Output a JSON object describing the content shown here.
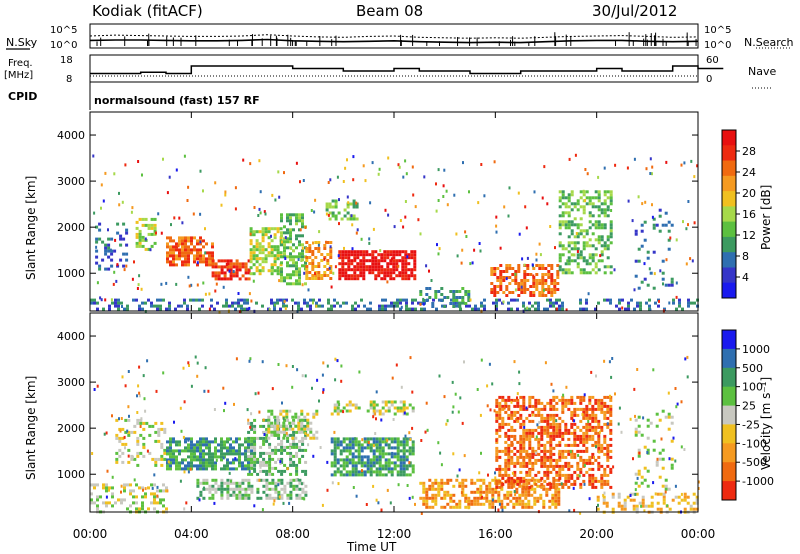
{
  "header": {
    "station": "Kodiak (fitACF)",
    "beam": "Beam 08",
    "date": "30/Jul/2012"
  },
  "panel_labels": {
    "nsky": "N.Sky",
    "freq": "Freq.",
    "freq_unit": "[MHz]",
    "cpid": "CPID",
    "nsearch": "N.Search",
    "nave": "Nave",
    "cpid_text": "normalsound (fast) 157 RF"
  },
  "colors": {
    "power": [
      "#1a1aee",
      "#3535c8",
      "#2f6fb0",
      "#3c9a60",
      "#5cc040",
      "#a6d94a",
      "#f0c020",
      "#f59a20",
      "#f06a10",
      "#ee2a10",
      "#e81010"
    ],
    "velocity": [
      "#1a1aee",
      "#2f6fb0",
      "#3c9a60",
      "#5cc040",
      "#c8c8c0",
      "#f0c020",
      "#f59a20",
      "#f06a10",
      "#ee2a10"
    ]
  },
  "chart_data": [
    {
      "type": "line",
      "name": "nsky_nsearch",
      "ylabel": "N.Sky",
      "ylabel_right": "N.Search",
      "y_ticks_left": [
        "10^5",
        "10^0"
      ],
      "y_ticks_right": [
        "10^5",
        "10^0"
      ],
      "x": [
        0,
        1,
        2,
        3,
        4,
        5,
        6,
        7,
        8,
        9,
        10,
        11,
        12,
        13,
        14,
        15,
        16,
        17,
        18,
        19,
        20,
        21,
        22,
        23,
        24
      ],
      "series": [
        {
          "name": "N.Sky",
          "values": [
            1.5,
            1.6,
            1.6,
            1.5,
            1.4,
            1.4,
            1.5,
            1.7,
            1.4,
            1.3,
            1.2,
            1.3,
            1.4,
            1.2,
            1.1,
            1.0,
            1.1,
            1.0,
            1.2,
            1.4,
            1.5,
            1.5,
            1.3,
            1.2,
            1.3
          ]
        },
        {
          "name": "N.Search",
          "values": [
            2.5,
            2.7,
            2.6,
            2.5,
            2.4,
            2.4,
            2.5,
            2.8,
            2.5,
            2.3,
            2.2,
            2.4,
            2.5,
            2.2,
            2.1,
            2.0,
            2.1,
            2.0,
            2.2,
            2.4,
            2.5,
            2.6,
            2.4,
            2.2,
            2.3
          ]
        }
      ]
    },
    {
      "type": "line",
      "name": "freq_nave",
      "y_ticks_left": [
        "18",
        "8"
      ],
      "y_ticks_right": [
        "60",
        "0"
      ],
      "series": [
        {
          "name": "Freq",
          "values": [
            11,
            11,
            11.5,
            11,
            14,
            14,
            14,
            14,
            13,
            13,
            12,
            12,
            13,
            12,
            12,
            11,
            11,
            12,
            12,
            12,
            13,
            12,
            12,
            14,
            13
          ]
        },
        {
          "name": "Nave",
          "values": [
            12,
            12,
            12,
            12,
            12,
            12,
            12,
            12,
            12,
            12,
            12,
            12,
            12,
            12,
            12,
            12,
            12,
            12,
            12,
            12,
            12,
            12,
            12,
            12,
            12
          ]
        }
      ]
    },
    {
      "type": "heatmap",
      "name": "power",
      "ylabel": "Slant Range [km]",
      "colorbar_label": "Power [dB]",
      "colorbar_ticks": [
        "4",
        "8",
        "12",
        "16",
        "20",
        "24",
        "28"
      ],
      "y_ticks": [
        "1000",
        "2000",
        "3000",
        "4000"
      ],
      "ylim": [
        180,
        4500
      ],
      "xlim": [
        0,
        24
      ],
      "regions": [
        {
          "t0": 0.0,
          "t1": 24.0,
          "r0": 200,
          "r1": 450,
          "level": 2,
          "density": 0.35
        },
        {
          "t0": 0.2,
          "t1": 1.5,
          "r0": 1100,
          "r1": 2100,
          "level": 2,
          "density": 0.25
        },
        {
          "t0": 1.8,
          "t1": 2.6,
          "r0": 1500,
          "r1": 2200,
          "level": 5,
          "density": 0.55
        },
        {
          "t0": 3.0,
          "t1": 4.8,
          "r0": 1200,
          "r1": 1800,
          "level": 8,
          "density": 0.7
        },
        {
          "t0": 4.8,
          "t1": 6.3,
          "r0": 900,
          "r1": 1300,
          "level": 9,
          "density": 0.7
        },
        {
          "t0": 6.3,
          "t1": 7.5,
          "r0": 1000,
          "r1": 2000,
          "level": 5,
          "density": 0.6
        },
        {
          "t0": 7.5,
          "t1": 8.5,
          "r0": 800,
          "r1": 2300,
          "level": 4,
          "density": 0.55
        },
        {
          "t0": 8.5,
          "t1": 9.5,
          "r0": 900,
          "r1": 1700,
          "level": 7,
          "density": 0.55
        },
        {
          "t0": 9.3,
          "t1": 10.5,
          "r0": 2200,
          "r1": 2600,
          "level": 4,
          "density": 0.55
        },
        {
          "t0": 9.8,
          "t1": 12.8,
          "r0": 850,
          "r1": 1500,
          "level": 10,
          "density": 0.8
        },
        {
          "t0": 13.0,
          "t1": 15.0,
          "r0": 250,
          "r1": 700,
          "level": 3,
          "density": 0.45
        },
        {
          "t0": 15.8,
          "t1": 18.5,
          "r0": 500,
          "r1": 1200,
          "level": 8,
          "density": 0.6
        },
        {
          "t0": 18.5,
          "t1": 20.6,
          "r0": 1000,
          "r1": 2800,
          "level": 4,
          "density": 0.45
        },
        {
          "t0": 21.5,
          "t1": 23.0,
          "r0": 700,
          "r1": 2400,
          "level": 2,
          "density": 0.15
        }
      ]
    },
    {
      "type": "heatmap",
      "name": "velocity",
      "ylabel": "Slant Range [km]",
      "colorbar_label": "Velocity [m s⁻¹]",
      "colorbar_ticks": [
        "1000",
        "500",
        "100",
        "25",
        "-25",
        "-100",
        "-500",
        "-1000"
      ],
      "y_ticks": [
        "1000",
        "2000",
        "3000",
        "4000"
      ],
      "ylim": [
        180,
        4500
      ],
      "xlim": [
        0,
        24
      ],
      "x_ticks": [
        "00:00",
        "04:00",
        "08:00",
        "12:00",
        "16:00",
        "20:00",
        "00:00"
      ],
      "xlabel": "Time UT",
      "regions": [
        {
          "t0": 0.0,
          "t1": 3.0,
          "r0": 200,
          "r1": 800,
          "level": 4,
          "density": 0.35
        },
        {
          "t0": 1.0,
          "t1": 3.0,
          "r0": 1200,
          "r1": 2200,
          "level": 4,
          "density": 0.3
        },
        {
          "t0": 3.0,
          "t1": 6.5,
          "r0": 1100,
          "r1": 1800,
          "level": 2,
          "density": 0.7
        },
        {
          "t0": 4.2,
          "t1": 8.5,
          "r0": 500,
          "r1": 900,
          "level": 3,
          "density": 0.6
        },
        {
          "t0": 6.2,
          "t1": 8.5,
          "r0": 1000,
          "r1": 2200,
          "level": 3,
          "density": 0.55
        },
        {
          "t0": 7.0,
          "t1": 9.0,
          "r0": 1800,
          "r1": 2400,
          "level": 4,
          "density": 0.5
        },
        {
          "t0": 9.5,
          "t1": 12.7,
          "r0": 1000,
          "r1": 1800,
          "level": 2,
          "density": 0.75
        },
        {
          "t0": 9.5,
          "t1": 12.7,
          "r0": 2300,
          "r1": 2600,
          "level": 4,
          "density": 0.5
        },
        {
          "t0": 13.0,
          "t1": 18.5,
          "r0": 250,
          "r1": 900,
          "level": 6,
          "density": 0.55
        },
        {
          "t0": 16.0,
          "t1": 20.6,
          "r0": 700,
          "r1": 2700,
          "level": 7,
          "density": 0.55
        },
        {
          "t0": 20.0,
          "t1": 24.0,
          "r0": 200,
          "r1": 600,
          "level": 5,
          "density": 0.35
        },
        {
          "t0": 21.5,
          "t1": 23.0,
          "r0": 700,
          "r1": 2400,
          "level": 4,
          "density": 0.15
        }
      ]
    }
  ]
}
